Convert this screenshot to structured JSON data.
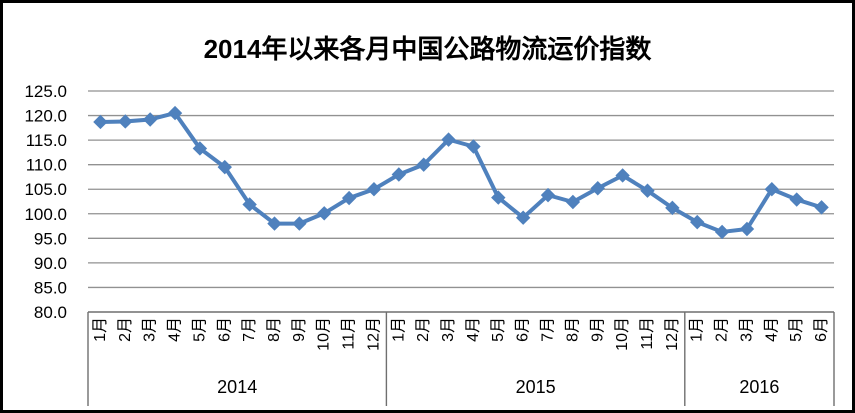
{
  "chart_data": {
    "type": "line",
    "title": "2014年以来各月中国公路物流运价指数",
    "legend": "none",
    "grid": true,
    "marker": "diamond",
    "line_color": "#4F81BD",
    "gridline_color": "#919191",
    "axis_color": "#6f6f6f",
    "text_color": "#000000",
    "ylim": [
      80,
      125
    ],
    "ytick_step": 5,
    "yticks": [
      "125.0",
      "120.0",
      "115.0",
      "110.0",
      "105.0",
      "100.0",
      "95.0",
      "90.0",
      "85.0",
      "80.0"
    ],
    "groups": [
      {
        "year": "2014",
        "months": [
          "1月",
          "2月",
          "3月",
          "4月",
          "5月",
          "6月",
          "7月",
          "8月",
          "9月",
          "10月",
          "11月",
          "12月"
        ],
        "values": [
          118.7,
          118.8,
          119.2,
          120.5,
          113.3,
          109.5,
          101.9,
          98.0,
          98.0,
          100.1,
          103.2,
          105.0
        ]
      },
      {
        "year": "2015",
        "months": [
          "1月",
          "2月",
          "3月",
          "4月",
          "5月",
          "6月",
          "7月",
          "8月",
          "9月",
          "10月",
          "11月",
          "12月"
        ],
        "values": [
          108.0,
          110.0,
          115.1,
          113.7,
          103.3,
          99.2,
          103.8,
          102.4,
          105.2,
          107.8,
          104.7,
          101.2
        ]
      },
      {
        "year": "2016",
        "months": [
          "1月",
          "2月",
          "3月",
          "4月",
          "5月",
          "6月"
        ],
        "values": [
          98.3,
          96.3,
          96.9,
          105.0,
          102.9,
          101.3
        ]
      }
    ]
  }
}
